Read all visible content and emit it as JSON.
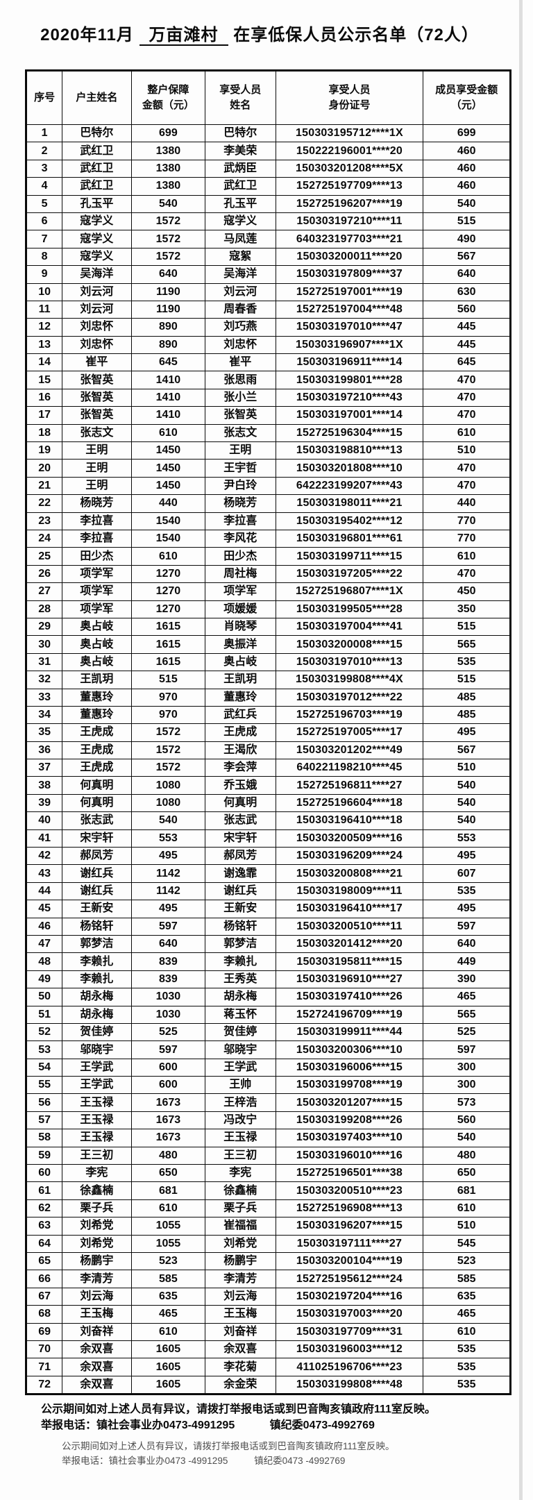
{
  "title": {
    "prefix": "2020年11月",
    "village": "万亩滩村",
    "suffix": "在享低保人员公示名单（72人）"
  },
  "colors": {
    "ink": "#0a0a0a",
    "ghost_ink": "#4f4f4f",
    "paper": "#fdfdfd",
    "border": "#0a0a0a"
  },
  "table": {
    "headers": [
      "序号",
      "户主姓名",
      "整户保障\n金额（元）",
      "享受人员\n姓名",
      "享受人员\n身份证号",
      "成员享受金额\n（元）"
    ],
    "rows": [
      [
        "1",
        "巴特尔",
        "699",
        "巴特尔",
        "150303195712****1X",
        "699"
      ],
      [
        "2",
        "武红卫",
        "1380",
        "李美荣",
        "150222196001****20",
        "460"
      ],
      [
        "3",
        "武红卫",
        "1380",
        "武炳臣",
        "150303201208****5X",
        "460"
      ],
      [
        "4",
        "武红卫",
        "1380",
        "武红卫",
        "152725197709****13",
        "460"
      ],
      [
        "5",
        "孔玉平",
        "540",
        "孔玉平",
        "152725196207****19",
        "540"
      ],
      [
        "6",
        "寇学义",
        "1572",
        "寇学义",
        "150303197210****11",
        "515"
      ],
      [
        "7",
        "寇学义",
        "1572",
        "马凤莲",
        "640323197703****21",
        "490"
      ],
      [
        "8",
        "寇学义",
        "1572",
        "寇絮",
        "150303200011****20",
        "567"
      ],
      [
        "9",
        "吴海洋",
        "640",
        "吴海洋",
        "150303197809****37",
        "640"
      ],
      [
        "10",
        "刘云河",
        "1190",
        "刘云河",
        "152725197001****19",
        "630"
      ],
      [
        "11",
        "刘云河",
        "1190",
        "周春香",
        "152725197004****48",
        "560"
      ],
      [
        "12",
        "刘忠怀",
        "890",
        "刘巧燕",
        "150303197010****47",
        "445"
      ],
      [
        "13",
        "刘忠怀",
        "890",
        "刘忠怀",
        "150303196907****1X",
        "445"
      ],
      [
        "14",
        "崔平",
        "645",
        "崔平",
        "150303196911****14",
        "645"
      ],
      [
        "15",
        "张智英",
        "1410",
        "张思雨",
        "150303199801****28",
        "470"
      ],
      [
        "16",
        "张智英",
        "1410",
        "张小兰",
        "150303197210****43",
        "470"
      ],
      [
        "17",
        "张智英",
        "1410",
        "张智英",
        "150303197001****14",
        "470"
      ],
      [
        "18",
        "张志文",
        "610",
        "张志文",
        "152725196304****15",
        "610"
      ],
      [
        "19",
        "王明",
        "1450",
        "王明",
        "150303198810****13",
        "510"
      ],
      [
        "20",
        "王明",
        "1450",
        "王宇哲",
        "150303201808****10",
        "470"
      ],
      [
        "21",
        "王明",
        "1450",
        "尹白玲",
        "642223199207****43",
        "470"
      ],
      [
        "22",
        "杨晓芳",
        "440",
        "杨晓芳",
        "150303198011****21",
        "440"
      ],
      [
        "23",
        "李拉喜",
        "1540",
        "李拉喜",
        "150303195402****12",
        "770"
      ],
      [
        "24",
        "李拉喜",
        "1540",
        "李风花",
        "150303196801****61",
        "770"
      ],
      [
        "25",
        "田少杰",
        "610",
        "田少杰",
        "150303199711****15",
        "610"
      ],
      [
        "26",
        "项学军",
        "1270",
        "周社梅",
        "150303197205****22",
        "470"
      ],
      [
        "27",
        "项学军",
        "1270",
        "项学军",
        "152725196807****1X",
        "450"
      ],
      [
        "28",
        "项学军",
        "1270",
        "项媛媛",
        "150303199505****28",
        "350"
      ],
      [
        "29",
        "奥占岐",
        "1615",
        "肖晓琴",
        "150303197004****41",
        "515"
      ],
      [
        "30",
        "奥占岐",
        "1615",
        "奥振洋",
        "150303200008****15",
        "565"
      ],
      [
        "31",
        "奥占岐",
        "1615",
        "奥占岐",
        "150303197010****13",
        "535"
      ],
      [
        "32",
        "王凯玥",
        "515",
        "王凯玥",
        "150303199808****4X",
        "515"
      ],
      [
        "33",
        "董惠玲",
        "970",
        "董惠玲",
        "150303197012****22",
        "485"
      ],
      [
        "34",
        "董惠玲",
        "970",
        "武红兵",
        "152725196703****19",
        "485"
      ],
      [
        "35",
        "王虎成",
        "1572",
        "王虎成",
        "152725197005****17",
        "495"
      ],
      [
        "36",
        "王虎成",
        "1572",
        "王渴欣",
        "150303201202****49",
        "567"
      ],
      [
        "37",
        "王虎成",
        "1572",
        "李会萍",
        "640221198210****45",
        "510"
      ],
      [
        "38",
        "何真明",
        "1080",
        "乔玉娥",
        "152725196811****27",
        "540"
      ],
      [
        "39",
        "何真明",
        "1080",
        "何真明",
        "152725196604****18",
        "540"
      ],
      [
        "40",
        "张志武",
        "540",
        "张志武",
        "150303196410****18",
        "540"
      ],
      [
        "41",
        "宋宇轩",
        "553",
        "宋宇轩",
        "150303200509****16",
        "553"
      ],
      [
        "42",
        "郝凤芳",
        "495",
        "郝凤芳",
        "150303196209****24",
        "495"
      ],
      [
        "43",
        "谢红兵",
        "1142",
        "谢逸霏",
        "150303200808****21",
        "607"
      ],
      [
        "44",
        "谢红兵",
        "1142",
        "谢红兵",
        "150303198009****11",
        "535"
      ],
      [
        "45",
        "王新安",
        "495",
        "王新安",
        "150303196410****17",
        "495"
      ],
      [
        "46",
        "杨铭轩",
        "597",
        "杨铭轩",
        "150303200510****11",
        "597"
      ],
      [
        "47",
        "郭梦洁",
        "640",
        "郭梦洁",
        "150303201412****20",
        "640"
      ],
      [
        "48",
        "李赖扎",
        "839",
        "李赖扎",
        "150303195811****15",
        "449"
      ],
      [
        "49",
        "李赖扎",
        "839",
        "王秀英",
        "150303196910****27",
        "390"
      ],
      [
        "50",
        "胡永梅",
        "1030",
        "胡永梅",
        "150303197410****26",
        "465"
      ],
      [
        "51",
        "胡永梅",
        "1030",
        "蒋玉怀",
        "152724196709****19",
        "565"
      ],
      [
        "52",
        "贺佳婷",
        "525",
        "贺佳婷",
        "150303199911****44",
        "525"
      ],
      [
        "53",
        "邬晓宇",
        "597",
        "邬晓宇",
        "150303200306****10",
        "597"
      ],
      [
        "54",
        "王学武",
        "600",
        "王学武",
        "150303196006****15",
        "300"
      ],
      [
        "55",
        "王学武",
        "600",
        "王帅",
        "150303199708****19",
        "300"
      ],
      [
        "56",
        "王玉禄",
        "1673",
        "王梓浩",
        "150303201207****15",
        "573"
      ],
      [
        "57",
        "王玉禄",
        "1673",
        "冯改宁",
        "150303199208****26",
        "560"
      ],
      [
        "58",
        "王玉禄",
        "1673",
        "王玉禄",
        "150303197403****10",
        "540"
      ],
      [
        "59",
        "王三初",
        "480",
        "王三初",
        "150303196010****16",
        "480"
      ],
      [
        "60",
        "李宪",
        "650",
        "李宪",
        "152725196501****38",
        "650"
      ],
      [
        "61",
        "徐鑫楠",
        "681",
        "徐鑫楠",
        "150303200510****23",
        "681"
      ],
      [
        "62",
        "栗子兵",
        "610",
        "栗子兵",
        "152725196908****13",
        "610"
      ],
      [
        "63",
        "刘希党",
        "1055",
        "崔福福",
        "150303196207****15",
        "510"
      ],
      [
        "64",
        "刘希党",
        "1055",
        "刘希党",
        "150303197111****27",
        "545"
      ],
      [
        "65",
        "杨鹏宇",
        "523",
        "杨鹏宇",
        "150303200104****19",
        "523"
      ],
      [
        "66",
        "李清芳",
        "585",
        "李清芳",
        "152725195612****24",
        "585"
      ],
      [
        "67",
        "刘云海",
        "635",
        "刘云海",
        "150302197204****16",
        "635"
      ],
      [
        "68",
        "王玉梅",
        "465",
        "王玉梅",
        "150303197003****20",
        "465"
      ],
      [
        "69",
        "刘奋祥",
        "610",
        "刘奋祥",
        "150303197709****31",
        "610"
      ],
      [
        "70",
        "余双喜",
        "1605",
        "余双喜",
        "150303196003****12",
        "535"
      ],
      [
        "71",
        "余双喜",
        "1605",
        "李花菊",
        "411025196706****23",
        "535"
      ],
      [
        "72",
        "余双喜",
        "1605",
        "余金荣",
        "150303199808****48",
        "535"
      ]
    ]
  },
  "footer": {
    "notice": "公示期间如对上述人员有异议，请拨打举报电话或到巴音陶亥镇政府111室反映。",
    "hotline_label": "举报电话：镇社会事业办0473-4991295",
    "hotline2": "镇纪委0473-4992769",
    "ghost_notice": "公示期间如对上述人员有异议，请拨打举报电话或到巴音陶亥镇政府111室反映。",
    "ghost_hotline_label": "举报电话：镇社会事业办0473 -4991295",
    "ghost_hotline2": "镇纪委0473 -4992769"
  }
}
